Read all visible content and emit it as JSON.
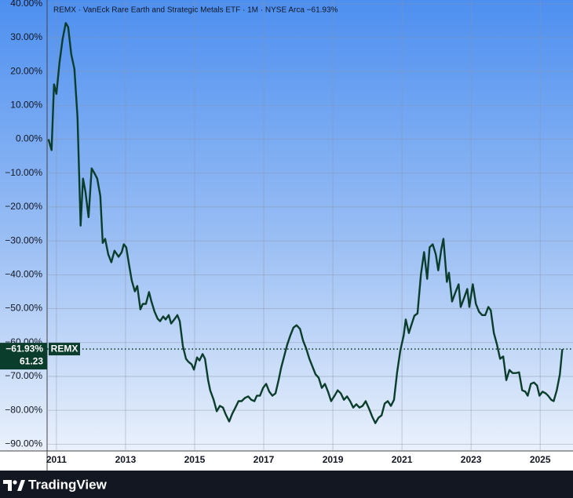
{
  "chart_data": {
    "type": "line",
    "title": "REMX · VanEck Rare Earth and Strategic Metals ETF · 1M · NYSE Arca  −61.93%",
    "brand": "TradingView",
    "last_value": {
      "value": -61.93,
      "label": "−61.93%"
    },
    "last_symbol": "REMX",
    "last_price": 61.23,
    "grid": true,
    "xlim": [
      2010.73,
      2025.95
    ],
    "xticks": [
      2011,
      2013,
      2015,
      2017,
      2019,
      2021,
      2023,
      2025
    ],
    "ylim": [
      -92,
      41.1
    ],
    "yticks": [
      {
        "value": 40,
        "label": "40.00%"
      },
      {
        "value": 30,
        "label": "30.00%"
      },
      {
        "value": 20,
        "label": "20.00%"
      },
      {
        "value": 10,
        "label": "10.00%"
      },
      {
        "value": 0,
        "label": "0.00%"
      },
      {
        "value": -10,
        "label": "−10.00%"
      },
      {
        "value": -20,
        "label": "−20.00%"
      },
      {
        "value": -30,
        "label": "−30.00%"
      },
      {
        "value": -40,
        "label": "−40.00%"
      },
      {
        "value": -50,
        "label": "−50.00%"
      },
      {
        "value": -60,
        "label": "−60.00%"
      },
      {
        "value": -70,
        "label": "−70.00%"
      },
      {
        "value": -80,
        "label": "−80.00%"
      },
      {
        "value": -90,
        "label": "−90.00%"
      }
    ],
    "x": [
      2010.77,
      2010.86,
      2010.93,
      2011.0,
      2011.09,
      2011.18,
      2011.27,
      2011.34,
      2011.43,
      2011.52,
      2011.61,
      2011.7,
      2011.77,
      2011.84,
      2011.93,
      2012.02,
      2012.11,
      2012.18,
      2012.27,
      2012.34,
      2012.41,
      2012.5,
      2012.59,
      2012.68,
      2012.8,
      2012.89,
      2012.95,
      2013.02,
      2013.11,
      2013.18,
      2013.27,
      2013.34,
      2013.43,
      2013.5,
      2013.59,
      2013.68,
      2013.75,
      2013.84,
      2013.93,
      2014.0,
      2014.09,
      2014.16,
      2014.25,
      2014.32,
      2014.41,
      2014.5,
      2014.57,
      2014.66,
      2014.75,
      2014.82,
      2014.91,
      2014.98,
      2015.07,
      2015.14,
      2015.23,
      2015.3,
      2015.39,
      2015.45,
      2015.55,
      2015.64,
      2015.73,
      2015.82,
      2015.89,
      2016.0,
      2016.09,
      2016.18,
      2016.27,
      2016.36,
      2016.45,
      2016.55,
      2016.64,
      2016.73,
      2016.8,
      2016.89,
      2016.98,
      2017.07,
      2017.16,
      2017.25,
      2017.34,
      2017.43,
      2017.5,
      2017.59,
      2017.68,
      2017.77,
      2017.86,
      2017.95,
      2018.05,
      2018.14,
      2018.23,
      2018.32,
      2018.41,
      2018.5,
      2018.59,
      2018.68,
      2018.77,
      2018.86,
      2018.95,
      2019.05,
      2019.14,
      2019.23,
      2019.32,
      2019.41,
      2019.5,
      2019.59,
      2019.68,
      2019.77,
      2019.86,
      2019.95,
      2020.05,
      2020.14,
      2020.23,
      2020.32,
      2020.41,
      2020.5,
      2020.59,
      2020.68,
      2020.77,
      2020.86,
      2020.95,
      2021.05,
      2021.11,
      2021.2,
      2021.27,
      2021.36,
      2021.45,
      2021.55,
      2021.64,
      2021.73,
      2021.8,
      2021.89,
      2021.98,
      2022.05,
      2022.14,
      2022.2,
      2022.3,
      2022.36,
      2022.45,
      2022.55,
      2022.64,
      2022.7,
      2022.8,
      2022.89,
      2022.95,
      2023.05,
      2023.14,
      2023.23,
      2023.32,
      2023.41,
      2023.5,
      2023.57,
      2023.66,
      2023.75,
      2023.84,
      2023.93,
      2024.02,
      2024.11,
      2024.2,
      2024.3,
      2024.39,
      2024.48,
      2024.57,
      2024.64,
      2024.73,
      2024.82,
      2024.91,
      2024.98,
      2025.07,
      2025.16,
      2025.23,
      2025.32,
      2025.39,
      2025.48,
      2025.57,
      2025.64
    ],
    "series": [
      {
        "name": "REMX",
        "color": "#0b3d2c",
        "values": [
          0,
          -3.2,
          16.2,
          13.4,
          22.7,
          29.6,
          34.3,
          33.1,
          25,
          20.8,
          6.5,
          -25.5,
          -11.6,
          -15.5,
          -23,
          -8.6,
          -10.2,
          -11.6,
          -16.7,
          -30.6,
          -29.4,
          -34,
          -36.3,
          -32.9,
          -34.7,
          -33.3,
          -31,
          -31.9,
          -37.5,
          -41.7,
          -44.9,
          -43.3,
          -50.2,
          -48.6,
          -48.6,
          -45.1,
          -47.9,
          -50.9,
          -53,
          -53.7,
          -52.3,
          -53.2,
          -51.9,
          -54.4,
          -53.2,
          -51.9,
          -53.7,
          -61.1,
          -64.8,
          -65.7,
          -66.4,
          -68,
          -64.4,
          -65.3,
          -63.4,
          -64.8,
          -71.1,
          -74.1,
          -76.9,
          -80.3,
          -78.7,
          -79.2,
          -81,
          -83.3,
          -81,
          -79.2,
          -77.3,
          -77.3,
          -76.4,
          -75.9,
          -76.9,
          -77.3,
          -75.7,
          -75.7,
          -73.4,
          -72.2,
          -74.5,
          -75.7,
          -75,
          -71.1,
          -67.6,
          -64.1,
          -60.6,
          -57.9,
          -55.6,
          -54.9,
          -56,
          -59.5,
          -61.8,
          -64.8,
          -67.1,
          -69.4,
          -70.4,
          -73.4,
          -72.2,
          -74.5,
          -77.3,
          -75.7,
          -74.1,
          -75,
          -76.9,
          -75.9,
          -77.3,
          -79.2,
          -78.2,
          -79.2,
          -78.7,
          -77.3,
          -79.6,
          -81.9,
          -83.8,
          -82.2,
          -81.5,
          -78,
          -77.3,
          -78.7,
          -76.9,
          -68.8,
          -62.5,
          -57.9,
          -53.2,
          -57.2,
          -54.9,
          -52.1,
          -51.4,
          -39.8,
          -33.3,
          -41.2,
          -31.9,
          -31,
          -34,
          -38.7,
          -32.4,
          -29.4,
          -42.1,
          -39.4,
          -47.9,
          -45.1,
          -42.8,
          -49.5,
          -46.8,
          -44.2,
          -49.5,
          -42.8,
          -48.6,
          -50.9,
          -51.9,
          -51.9,
          -49.5,
          -50.5,
          -57.2,
          -60.6,
          -64.8,
          -64.1,
          -71.1,
          -68.1,
          -69,
          -69,
          -68.8,
          -74.1,
          -74.5,
          -75.7,
          -72.2,
          -71.8,
          -72.7,
          -75.7,
          -74.5,
          -75,
          -75.7,
          -76.9,
          -77.3,
          -74.1,
          -69.4,
          -61.93
        ]
      }
    ]
  }
}
